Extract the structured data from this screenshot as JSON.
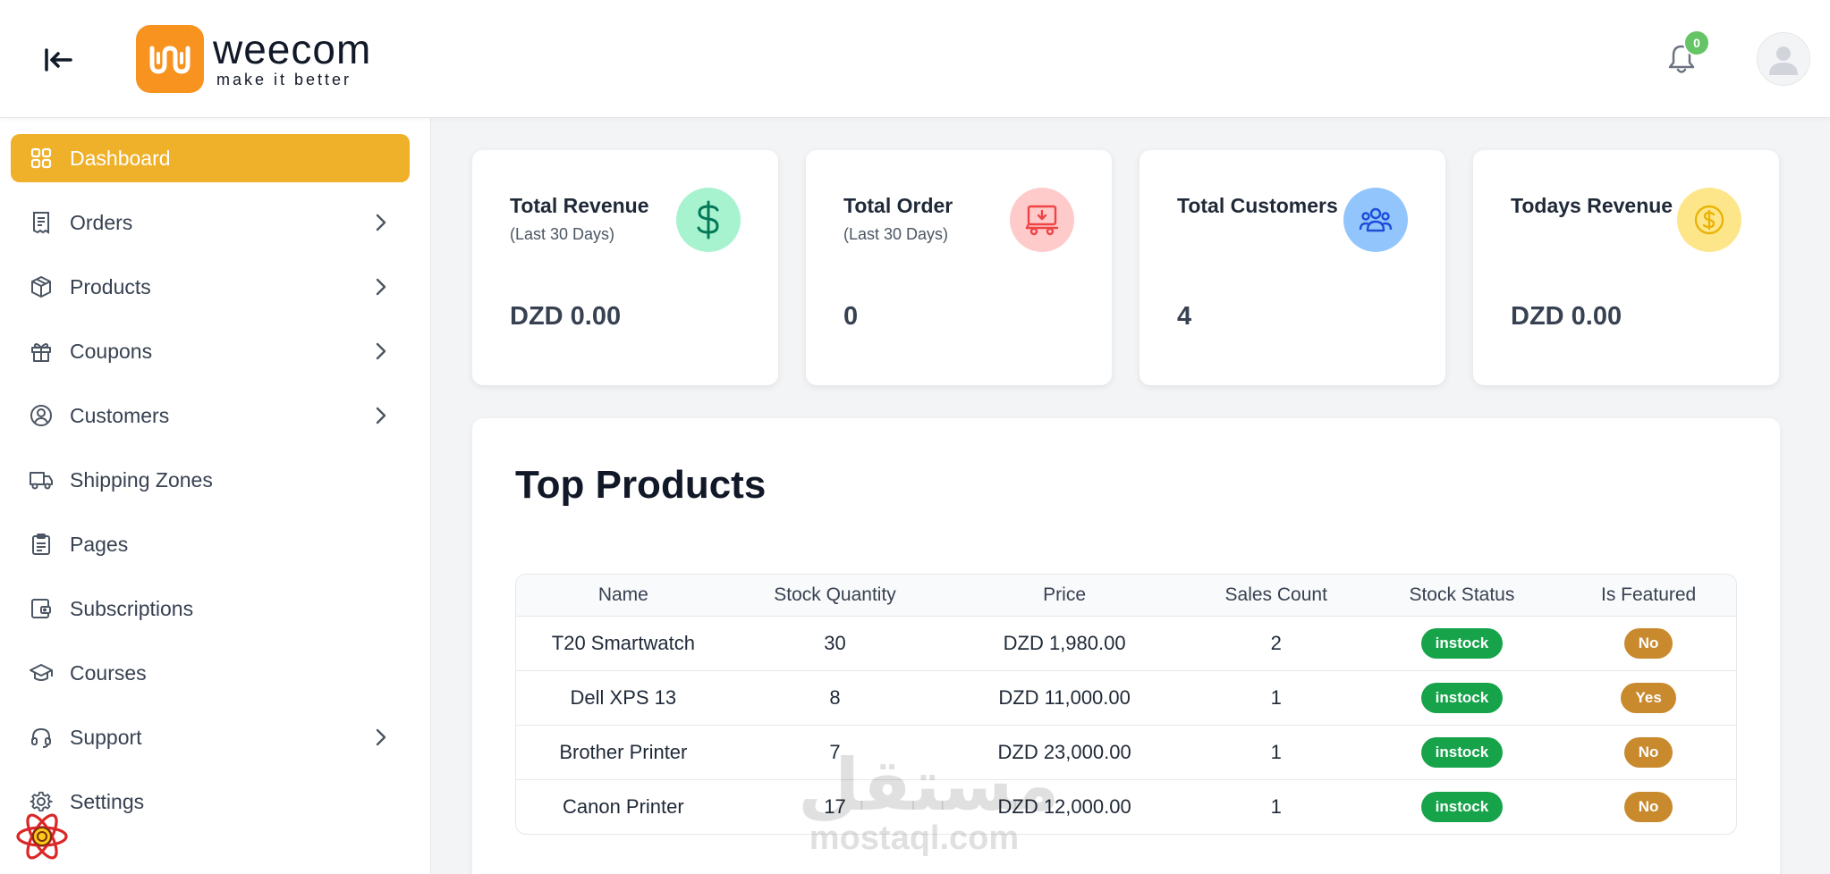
{
  "header": {
    "brand_name": "weecom",
    "brand_tagline": "make it better",
    "notification_count": "0",
    "brand_color": "#f7931e"
  },
  "sidebar": {
    "active_color": "#efb02a",
    "items": [
      {
        "label": "Dashboard",
        "icon": "dashboard-grid-icon",
        "active": true,
        "has_chevron": false
      },
      {
        "label": "Orders",
        "icon": "receipt-icon",
        "has_chevron": true
      },
      {
        "label": "Products",
        "icon": "package-icon",
        "has_chevron": true
      },
      {
        "label": "Coupons",
        "icon": "gift-icon",
        "has_chevron": true
      },
      {
        "label": "Customers",
        "icon": "user-circle-icon",
        "has_chevron": true
      },
      {
        "label": "Shipping Zones",
        "icon": "truck-icon",
        "has_chevron": false
      },
      {
        "label": "Pages",
        "icon": "clipboard-icon",
        "has_chevron": false
      },
      {
        "label": "Subscriptions",
        "icon": "wallet-icon",
        "has_chevron": false
      },
      {
        "label": "Courses",
        "icon": "graduation-cap-icon",
        "has_chevron": false
      },
      {
        "label": "Support",
        "icon": "headset-icon",
        "has_chevron": true
      },
      {
        "label": "Settings",
        "icon": "gear-icon",
        "has_chevron": false
      }
    ]
  },
  "stats": [
    {
      "title": "Total Revenue",
      "subtitle": "(Last 30 Days)",
      "value": "DZD 0.00",
      "icon": "dollar-icon",
      "icon_bg": "#a7f3d0",
      "icon_color": "#059669"
    },
    {
      "title": "Total Order",
      "subtitle": "(Last 30 Days)",
      "value": "0",
      "icon": "cart-icon",
      "icon_bg": "#fecaca",
      "icon_color": "#ef4444"
    },
    {
      "title": "Total Customers",
      "subtitle": "",
      "value": "4",
      "icon": "users-group-icon",
      "icon_bg": "#93c5fd",
      "icon_color": "#1d4ed8"
    },
    {
      "title": "Todays Revenue",
      "subtitle": "",
      "value": "DZD 0.00",
      "icon": "coin-icon",
      "icon_bg": "#fde68a",
      "icon_color": "#eab308"
    }
  ],
  "top_products": {
    "title": "Top Products",
    "columns": [
      "Name",
      "Stock Quantity",
      "Price",
      "Sales Count",
      "Stock Status",
      "Is Featured"
    ],
    "rows": [
      {
        "name": "T20 Smartwatch",
        "stock": "30",
        "price": "DZD 1,980.00",
        "sales": "2",
        "status": "instock",
        "featured": "No"
      },
      {
        "name": "Dell XPS 13",
        "stock": "8",
        "price": "DZD 11,000.00",
        "sales": "1",
        "status": "instock",
        "featured": "Yes"
      },
      {
        "name": "Brother Printer",
        "stock": "7",
        "price": "DZD 23,000.00",
        "sales": "1",
        "status": "instock",
        "featured": "No"
      },
      {
        "name": "Canon Printer",
        "stock": "17",
        "price": "DZD 12,000.00",
        "sales": "1",
        "status": "instock",
        "featured": "No"
      }
    ]
  },
  "watermark": {
    "arabic": "مستقل",
    "latin": "mostaql.com"
  }
}
